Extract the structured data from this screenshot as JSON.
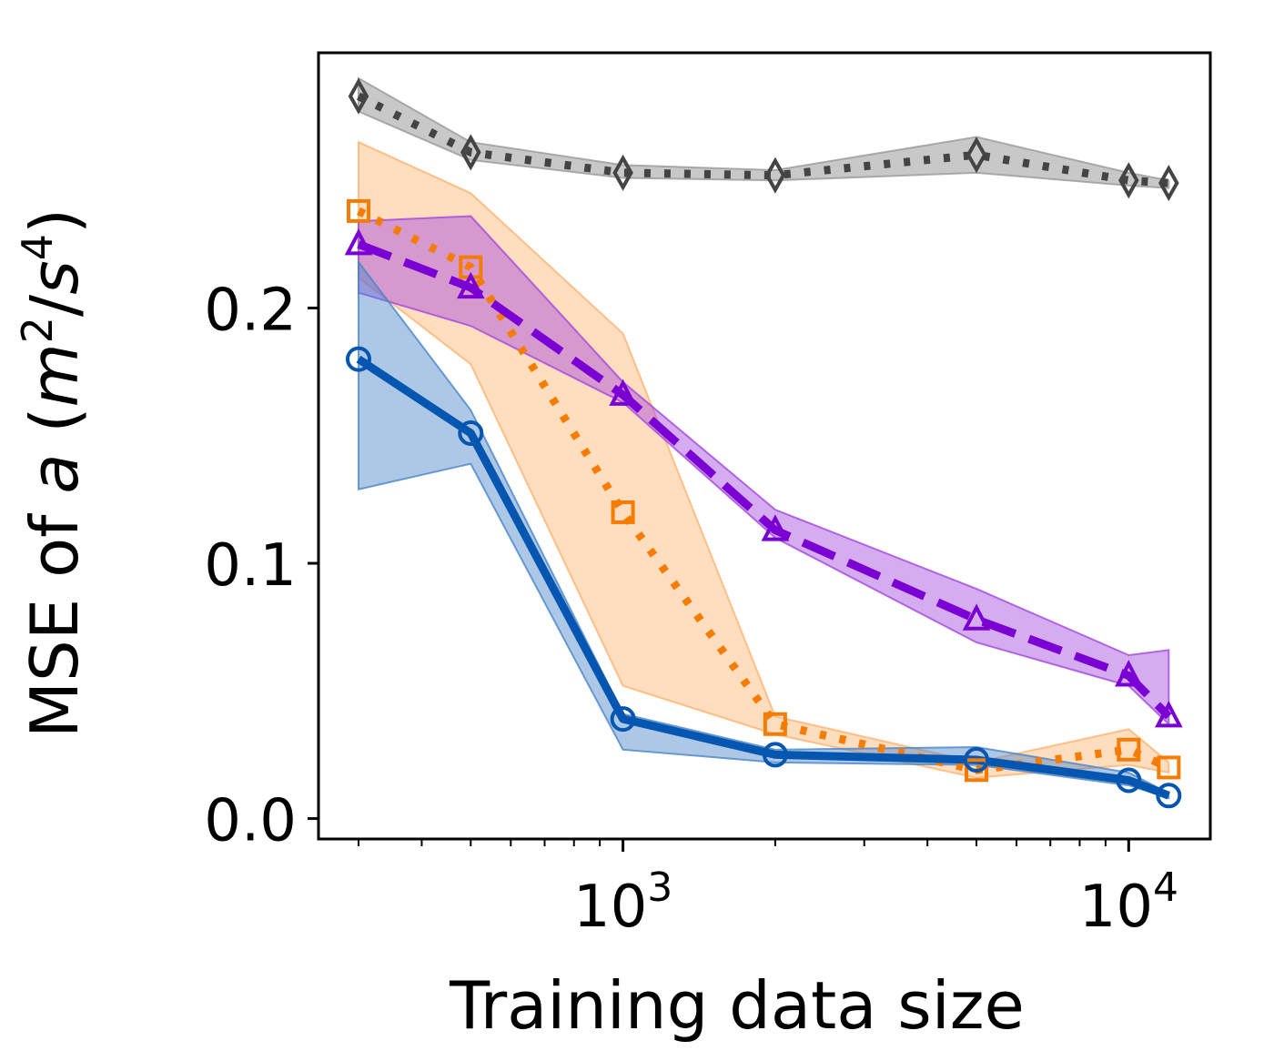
{
  "chart_data": {
    "type": "line",
    "title": "",
    "xlabel": "Training data size",
    "ylabel_prefix": "MSE of ",
    "ylabel_var": "a",
    "ylabel_unit_open": " (",
    "ylabel_unit_m": "m",
    "ylabel_unit_m_exp": "2",
    "ylabel_unit_sep": "/",
    "ylabel_unit_s": "s",
    "ylabel_unit_s_exp": "4",
    "ylabel_unit_close": ")",
    "x_scale": "log",
    "xlim": [
      250,
      14500
    ],
    "ylim": [
      -0.008,
      0.3
    ],
    "x_major_ticks": [
      {
        "value": 1000,
        "base": "10",
        "exp": "3"
      },
      {
        "value": 10000,
        "base": "10",
        "exp": "4"
      }
    ],
    "y_ticks": [
      {
        "value": 0.0,
        "label": "0.0"
      },
      {
        "value": 0.1,
        "label": "0.1"
      },
      {
        "value": 0.2,
        "label": "0.2"
      }
    ],
    "grid": false,
    "x": [
      300,
      500,
      1000,
      2000,
      5000,
      10000,
      12000
    ],
    "series": [
      {
        "color": "#444444",
        "fill": "#9a9a9a",
        "dash": "dotted",
        "marker": "diamond",
        "values": [
          0.283,
          0.261,
          0.253,
          0.252,
          0.26,
          0.25,
          0.249
        ],
        "lower": [
          0.277,
          0.258,
          0.251,
          0.25,
          0.253,
          0.248,
          0.247
        ],
        "upper": [
          0.29,
          0.265,
          0.256,
          0.254,
          0.267,
          0.253,
          0.25
        ]
      },
      {
        "color": "#f57c00",
        "fill": "#ffb370",
        "dash": "dotted",
        "marker": "square",
        "values": [
          0.238,
          0.216,
          0.12,
          0.037,
          0.019,
          0.027,
          0.02
        ],
        "lower": [
          0.212,
          0.178,
          0.052,
          0.033,
          0.016,
          0.021,
          0.018
        ],
        "upper": [
          0.265,
          0.245,
          0.19,
          0.04,
          0.022,
          0.035,
          0.022
        ]
      },
      {
        "color": "#7b00d4",
        "fill": "#a347e0",
        "dash": "dashed",
        "marker": "triangle",
        "values": [
          0.225,
          0.208,
          0.166,
          0.113,
          0.078,
          0.056,
          0.04
        ],
        "lower": [
          0.206,
          0.193,
          0.163,
          0.11,
          0.069,
          0.052,
          0.037
        ],
        "upper": [
          0.234,
          0.236,
          0.171,
          0.121,
          0.09,
          0.064,
          0.066
        ]
      },
      {
        "color": "#0556b0",
        "fill": "#4a86c8",
        "dash": "solid",
        "marker": "circle",
        "values": [
          0.18,
          0.151,
          0.039,
          0.025,
          0.023,
          0.015,
          0.009
        ],
        "lower": [
          0.129,
          0.139,
          0.027,
          0.022,
          0.021,
          0.013,
          0.008
        ],
        "upper": [
          0.218,
          0.16,
          0.041,
          0.027,
          0.028,
          0.018,
          0.01
        ]
      }
    ]
  }
}
